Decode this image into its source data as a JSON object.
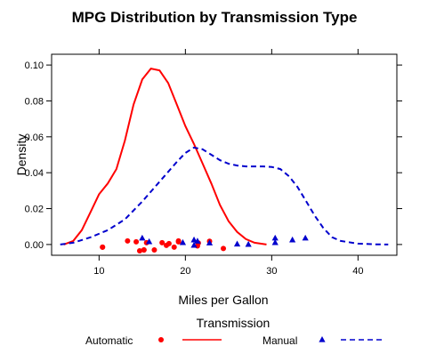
{
  "chart_data": {
    "type": "line",
    "title": "MPG Distribution by Transmission Type",
    "xlabel": "Miles per Gallon",
    "ylabel": "Density",
    "xlim": [
      4.5,
      44.5
    ],
    "ylim": [
      -0.006,
      0.106
    ],
    "x_ticks": [
      10,
      20,
      30,
      40
    ],
    "y_ticks": [
      0.0,
      0.02,
      0.04,
      0.06,
      0.08,
      0.1
    ],
    "y_tick_labels": [
      "0.00",
      "0.02",
      "0.04",
      "0.06",
      "0.08",
      "0.10"
    ],
    "legend": {
      "title": "Transmission",
      "placement": "bottom",
      "entries": [
        {
          "label": "Automatic",
          "marker": "circle",
          "line": "solid"
        },
        {
          "label": "Manual",
          "marker": "triangle",
          "line": "dashed"
        }
      ]
    },
    "series": [
      {
        "name": "Automatic",
        "color": "#ff0000",
        "line_style": "solid",
        "marker": "circle",
        "density_x": [
          5.9,
          7,
          8,
          9,
          10,
          11,
          12,
          13,
          14,
          15,
          16,
          17,
          18,
          19,
          20,
          21,
          22,
          23,
          24,
          25,
          26,
          27,
          28,
          29.4
        ],
        "density_y": [
          0.0,
          0.002,
          0.008,
          0.018,
          0.028,
          0.034,
          0.042,
          0.058,
          0.078,
          0.092,
          0.098,
          0.097,
          0.09,
          0.078,
          0.066,
          0.056,
          0.045,
          0.034,
          0.022,
          0.013,
          0.007,
          0.003,
          0.001,
          0.0
        ],
        "points_x": [
          10.4,
          10.4,
          13.3,
          14.3,
          14.7,
          15.2,
          15.2,
          15.5,
          16.4,
          17.3,
          17.8,
          18.1,
          18.7,
          19.2,
          19.2,
          21.4,
          21.5,
          22.8,
          24.4
        ],
        "points_y": [
          -0.0015,
          -0.0015,
          0.002,
          0.0015,
          -0.0035,
          -0.003,
          -0.003,
          0.001,
          -0.003,
          0.001,
          -0.0005,
          0.0005,
          -0.0015,
          0.0015,
          0.002,
          -0.0008,
          0.0008,
          0.0018,
          -0.0022
        ]
      },
      {
        "name": "Manual",
        "color": "#0000cd",
        "line_style": "dashed",
        "marker": "triangle",
        "density_x": [
          5.5,
          7,
          9,
          11,
          13,
          15,
          17,
          19,
          20,
          21,
          22,
          23,
          24,
          25,
          26,
          27,
          28,
          29,
          30,
          31,
          32,
          33,
          34,
          35,
          36,
          37,
          38,
          40,
          42,
          43.5
        ],
        "density_y": [
          0.0,
          0.001,
          0.004,
          0.008,
          0.014,
          0.024,
          0.035,
          0.046,
          0.051,
          0.054,
          0.053,
          0.05,
          0.047,
          0.045,
          0.044,
          0.0435,
          0.0435,
          0.0435,
          0.0432,
          0.042,
          0.038,
          0.032,
          0.024,
          0.016,
          0.009,
          0.004,
          0.002,
          0.0005,
          0.0001,
          0.0
        ],
        "points_x": [
          15.0,
          15.8,
          19.7,
          21.0,
          21.0,
          21.4,
          22.8,
          26.0,
          27.3,
          30.4,
          30.4,
          32.4,
          33.9
        ],
        "points_y": [
          0.0035,
          0.0015,
          0.001,
          0.0025,
          -0.0005,
          0.0018,
          0.0008,
          0.0002,
          0.0,
          0.0035,
          0.001,
          0.0025,
          0.0035
        ]
      }
    ]
  }
}
